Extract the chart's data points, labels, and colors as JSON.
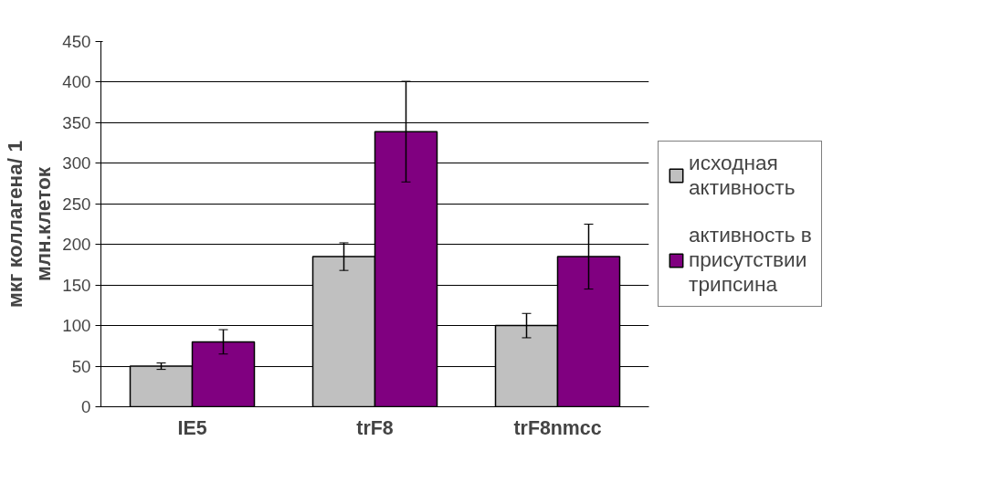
{
  "chart_data": {
    "type": "bar",
    "ylabel": "мкг коллагена/ 1 млн.клеток",
    "categories": [
      "IE5",
      "trF8",
      "trF8nmcc"
    ],
    "series": [
      {
        "name": "исходная активность",
        "color": "#c0c0c0",
        "values": [
          50,
          185,
          100
        ],
        "errors": [
          4,
          17,
          15
        ]
      },
      {
        "name": "активность в присутствии трипсина",
        "color": "#800080",
        "values": [
          80,
          339,
          185
        ],
        "errors": [
          15,
          62,
          40
        ]
      }
    ],
    "ylim": [
      0,
      450
    ],
    "yticks": [
      0,
      50,
      100,
      150,
      200,
      250,
      300,
      350,
      400,
      450
    ],
    "grid": "y",
    "legend": "right"
  }
}
